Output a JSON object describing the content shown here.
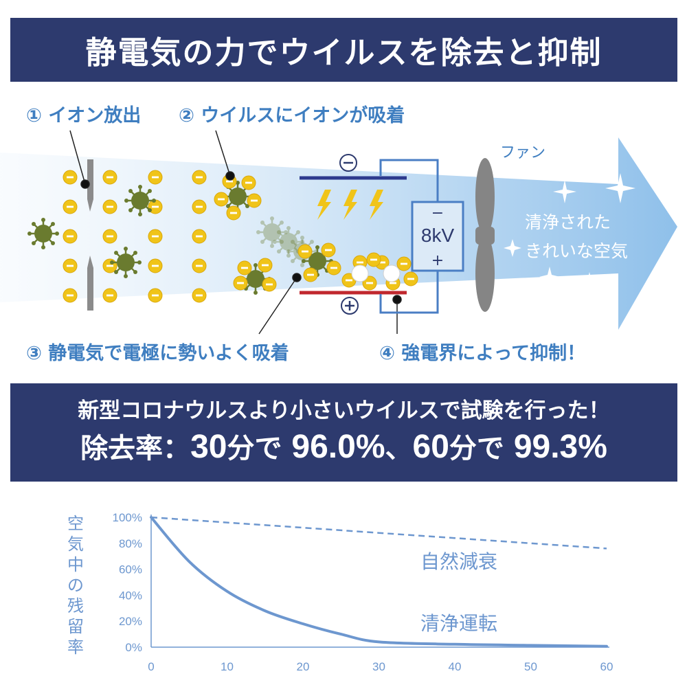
{
  "header": {
    "title": "静電気の力でウイルスを除去と抑制"
  },
  "diagram": {
    "step1": "① イオン放出",
    "step2": "② ウイルスにイオンが吸着",
    "step3": "③ 静電気で電極に勢いよく吸着",
    "step4": "④ 強電界によって抑制！",
    "fan_label": "ファン",
    "voltage": "8kV",
    "minus_sign": "−",
    "plus_sign": "+",
    "clean_air_line1": "清浄された",
    "clean_air_line2": "きれいな空気"
  },
  "result": {
    "line1": "新型コロナウルスより小さいウイルスで試験を行った！",
    "prefix": "除去率：",
    "t30": "30",
    "min_unit_1": "分で ",
    "pct30": "96.0%",
    "sep": "、",
    "t60": "60",
    "min_unit_2": "分で ",
    "pct60": "99.3%"
  },
  "colors": {
    "banner": "#2d3a6e",
    "label_blue": "#3f7ec0",
    "curve": "#6d97cf",
    "ion_yellow": "#f0c419",
    "virus_green": "#6a7b2f",
    "plate_negative": "#2d3a8e",
    "plate_positive": "#c0282e"
  },
  "chart_data": {
    "type": "line",
    "ylabel": "空気中の残留率",
    "xlim": [
      0,
      60
    ],
    "ylim": [
      0,
      100
    ],
    "x_ticks": [
      "0",
      "10",
      "20",
      "30",
      "40",
      "50",
      "60"
    ],
    "y_ticks": [
      "0%",
      "20%",
      "40%",
      "60%",
      "80%",
      "100%"
    ],
    "series": [
      {
        "name": "自然減衰",
        "style": "dashed",
        "x": [
          0,
          10,
          20,
          30,
          40,
          50,
          60
        ],
        "y": [
          100,
          96,
          92,
          88,
          84,
          80,
          76
        ]
      },
      {
        "name": "清浄運転",
        "style": "solid",
        "x": [
          0,
          5,
          10,
          15,
          20,
          25,
          30,
          40,
          50,
          60
        ],
        "y": [
          100,
          66,
          43,
          28,
          18,
          10,
          4.0,
          2.2,
          1.4,
          0.7
        ]
      }
    ]
  }
}
